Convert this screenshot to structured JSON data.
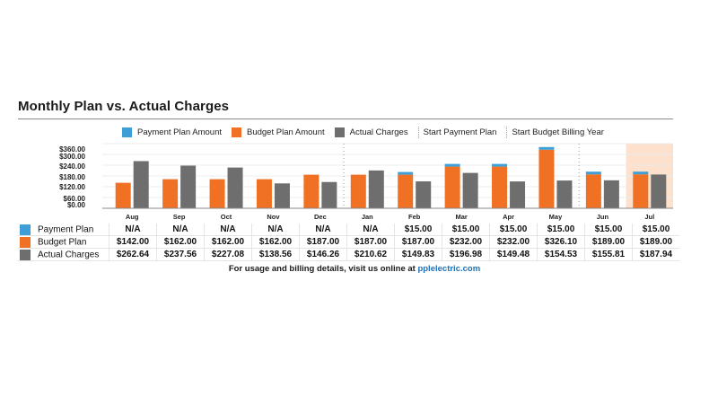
{
  "title": "Monthly Plan vs. Actual Charges",
  "colors": {
    "payment_plan": "#3e9fd6",
    "budget_plan": "#f07024",
    "actual_charges": "#6e6e6e",
    "highlight": "#fde1cd",
    "gridline": "#ececec",
    "link": "#1f6fb5"
  },
  "legend": {
    "payment_plan": "Payment Plan Amount",
    "budget_plan": "Budget Plan Amount",
    "actual_charges": "Actual Charges",
    "start_payment_plan": "Start Payment Plan",
    "start_budget_billing_year": "Start Budget Billing Year"
  },
  "table": {
    "rows": [
      {
        "key": "payment_plan",
        "label": "Payment Plan",
        "values": [
          "N/A",
          "N/A",
          "N/A",
          "N/A",
          "N/A",
          "N/A",
          "$15.00",
          "$15.00",
          "$15.00",
          "$15.00",
          "$15.00",
          "$15.00"
        ]
      },
      {
        "key": "budget_plan",
        "label": "Budget Plan",
        "values": [
          "$142.00",
          "$162.00",
          "$162.00",
          "$162.00",
          "$187.00",
          "$187.00",
          "$187.00",
          "$232.00",
          "$232.00",
          "$326.10",
          "$189.00",
          "$189.00"
        ]
      },
      {
        "key": "actual_charges",
        "label": "Actual Charges",
        "values": [
          "$262.64",
          "$237.56",
          "$227.08",
          "$138.56",
          "$146.26",
          "$210.62",
          "$149.83",
          "$196.98",
          "$149.48",
          "$154.53",
          "$155.81",
          "$187.94"
        ]
      }
    ]
  },
  "footer": {
    "text": "For usage and billing details, visit us online at ",
    "link_text": "pplelectric.com"
  },
  "chart_data": {
    "type": "bar",
    "title": "Monthly Plan vs. Actual Charges",
    "xlabel": "",
    "ylabel": "",
    "categories": [
      "Aug",
      "Sep",
      "Oct",
      "Nov",
      "Dec",
      "Jan",
      "Feb",
      "Mar",
      "Apr",
      "May",
      "Jun",
      "Jul"
    ],
    "ylim": [
      0,
      360
    ],
    "yticks": [
      0,
      60,
      120,
      180,
      240,
      300,
      360
    ],
    "ytick_labels": [
      "$0.00",
      "$60.00",
      "$120.00",
      "$180.00",
      "$240.00",
      "$300.00",
      "$360.00"
    ],
    "grid": true,
    "legend_position": "top",
    "stacked_groups": [
      [
        "budget_plan",
        "payment_plan"
      ],
      [
        "actual_charges"
      ]
    ],
    "series": [
      {
        "key": "budget_plan",
        "name": "Budget Plan Amount",
        "values": [
          142.0,
          162.0,
          162.0,
          162.0,
          187.0,
          187.0,
          187.0,
          232.0,
          232.0,
          326.1,
          189.0,
          189.0
        ]
      },
      {
        "key": "payment_plan",
        "name": "Payment Plan Amount",
        "values": [
          null,
          null,
          null,
          null,
          null,
          null,
          15.0,
          15.0,
          15.0,
          15.0,
          15.0,
          15.0
        ]
      },
      {
        "key": "actual_charges",
        "name": "Actual Charges",
        "values": [
          262.64,
          237.56,
          227.08,
          138.56,
          146.26,
          210.62,
          149.83,
          196.98,
          149.48,
          154.53,
          155.81,
          187.94
        ]
      }
    ],
    "markers": [
      {
        "label": "Start Payment Plan",
        "between": [
          "Dec",
          "Jan"
        ]
      },
      {
        "label": "Start Budget Billing Year",
        "between": [
          "May",
          "Jun"
        ]
      }
    ],
    "highlighted_category": "Jul"
  }
}
